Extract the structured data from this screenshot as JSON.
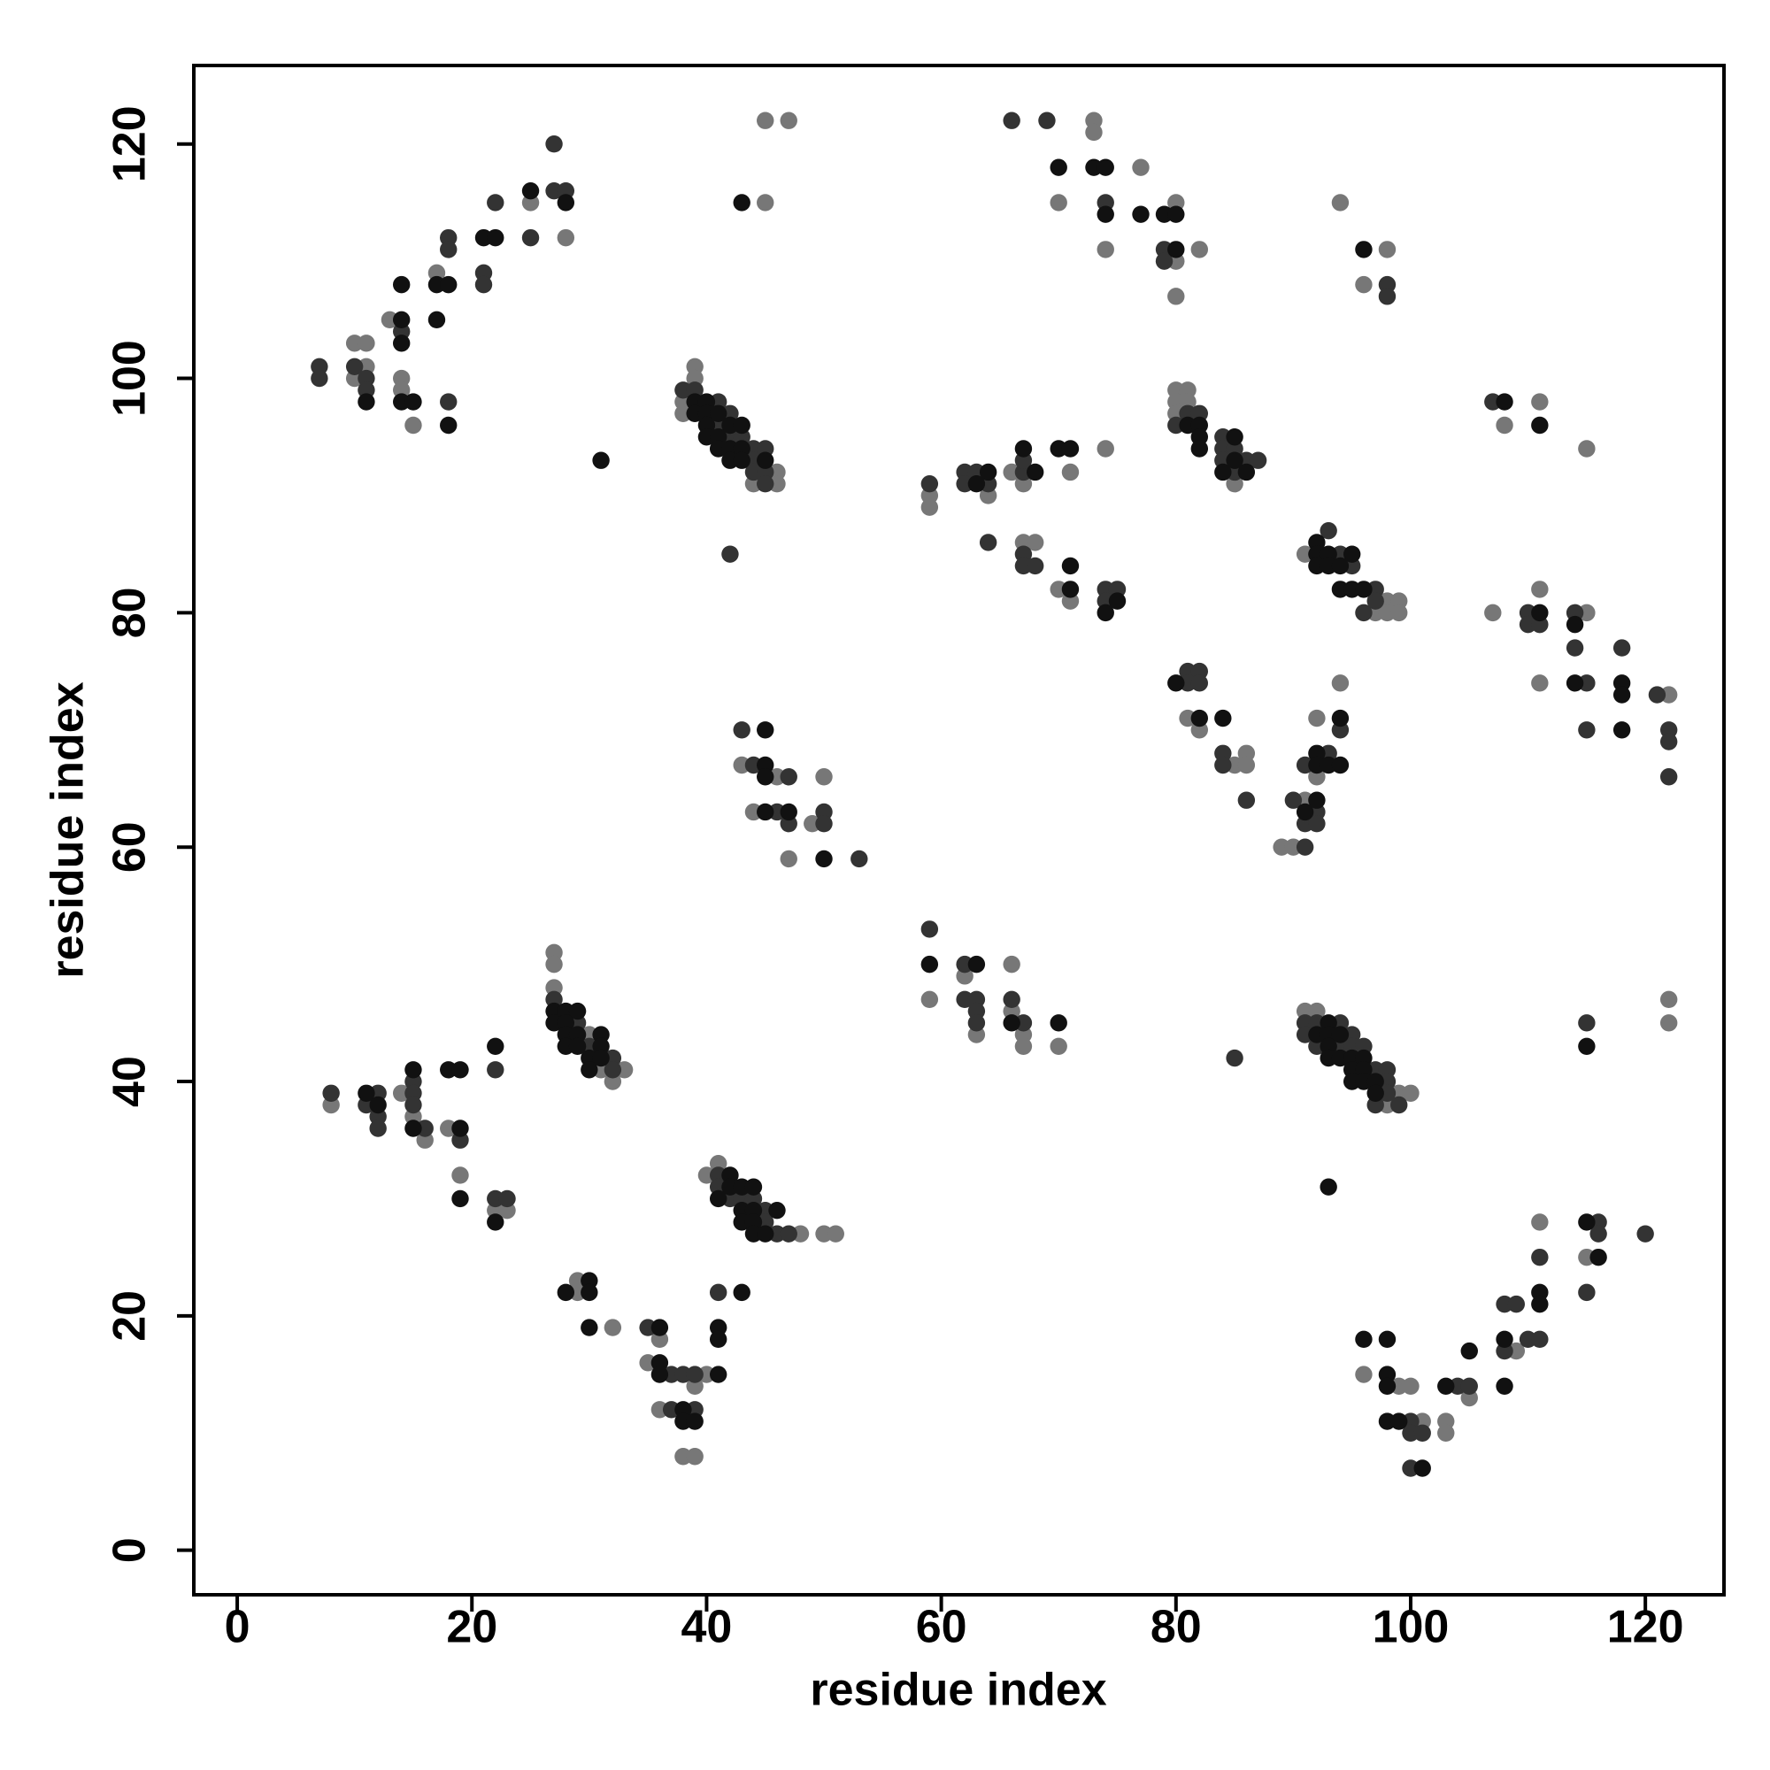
{
  "chart_data": {
    "type": "scatter",
    "x_label": "residue index",
    "y_label": "residue index",
    "xlim": [
      -3.7,
      126.7
    ],
    "ylim": [
      -3.8,
      126.7
    ],
    "xticks": [
      0,
      20,
      40,
      60,
      80,
      100,
      120
    ],
    "yticks": [
      0,
      20,
      40,
      60,
      80,
      100,
      120
    ],
    "grid": false,
    "series": [
      {
        "color": "#777777",
        "x": [
          10,
          11,
          11,
          10,
          13,
          14,
          14,
          15,
          17,
          25,
          28,
          45,
          45,
          47,
          39,
          39,
          38,
          38,
          46,
          44,
          46,
          73,
          73,
          77,
          70,
          80,
          74,
          82,
          80,
          80,
          94,
          98,
          96,
          59,
          59,
          64,
          66,
          67,
          71,
          74,
          67,
          68,
          70,
          71,
          80,
          81,
          80,
          81,
          80,
          85,
          91,
          98,
          99,
          97,
          98,
          99,
          111,
          108,
          115,
          107,
          111,
          115,
          111,
          122,
          81,
          82,
          85,
          86,
          86,
          89,
          90,
          91,
          92,
          92,
          94,
          43,
          46,
          50,
          44,
          49,
          47,
          66,
          59,
          62,
          63,
          66,
          67,
          67,
          70,
          91,
          92,
          99,
          100,
          98,
          122,
          122,
          27,
          27,
          27,
          30,
          31,
          33,
          32,
          8,
          14,
          15,
          16,
          18,
          19,
          22,
          23,
          40,
          41,
          48,
          50,
          51,
          29,
          29,
          32,
          35,
          36,
          40,
          39,
          36,
          38,
          39,
          96,
          99,
          100,
          101,
          103,
          103,
          105,
          109,
          111,
          115
        ],
        "values": [
          103,
          103,
          101,
          100,
          105,
          100,
          99,
          96,
          109,
          115,
          112,
          115,
          122,
          122,
          101,
          100,
          98,
          97,
          92,
          91,
          91,
          122,
          121,
          118,
          115,
          115,
          111,
          111,
          110,
          107,
          115,
          111,
          108,
          90,
          89,
          90,
          92,
          91,
          92,
          94,
          86,
          86,
          82,
          81,
          99,
          99,
          98,
          98,
          97,
          91,
          85,
          81,
          81,
          80,
          80,
          80,
          98,
          96,
          94,
          80,
          82,
          80,
          74,
          73,
          71,
          70,
          67,
          68,
          67,
          60,
          60,
          64,
          71,
          66,
          74,
          67,
          66,
          66,
          63,
          62,
          59,
          50,
          47,
          49,
          44,
          46,
          44,
          43,
          43,
          46,
          46,
          39,
          39,
          38,
          47,
          45,
          51,
          50,
          48,
          44,
          41,
          41,
          40,
          38,
          39,
          37,
          35,
          36,
          32,
          29,
          29,
          32,
          33,
          27,
          27,
          27,
          22,
          23,
          19,
          16,
          18,
          15,
          14,
          12,
          8,
          8,
          15,
          14,
          14,
          11,
          11,
          10,
          13,
          17,
          28,
          25
        ]
      },
      {
        "color": "#333333",
        "x": [
          7,
          7,
          10,
          11,
          11,
          14,
          18,
          18,
          18,
          21,
          21,
          22,
          25,
          27,
          27,
          28,
          38,
          39,
          41,
          42,
          41,
          42,
          43,
          44,
          45,
          44,
          44,
          45,
          45,
          42,
          66,
          69,
          74,
          79,
          79,
          98,
          98,
          59,
          62,
          63,
          62,
          64,
          67,
          67,
          64,
          67,
          67,
          68,
          74,
          75,
          74,
          81,
          82,
          80,
          84,
          84,
          85,
          84,
          86,
          87,
          85,
          93,
          94,
          95,
          97,
          96,
          97,
          107,
          110,
          110,
          111,
          114,
          114,
          115,
          115,
          118,
          121,
          122,
          122,
          122,
          81,
          82,
          81,
          82,
          84,
          84,
          86,
          91,
          90,
          92,
          91,
          92,
          91,
          93,
          94,
          43,
          44,
          47,
          46,
          47,
          50,
          50,
          53,
          59,
          62,
          62,
          63,
          63,
          63,
          66,
          67,
          91,
          92,
          94,
          91,
          95,
          92,
          94,
          95,
          96,
          97,
          98,
          98,
          98,
          97,
          99,
          85,
          115,
          27,
          29,
          30,
          32,
          32,
          8,
          12,
          11,
          12,
          12,
          15,
          15,
          15,
          16,
          19,
          22,
          22,
          23,
          41,
          41,
          42,
          43,
          44,
          45,
          45,
          46,
          47,
          35,
          37,
          38,
          39,
          37,
          39,
          41,
          100,
          100,
          101,
          100,
          104,
          105,
          108,
          109,
          108,
          110,
          111,
          111,
          116,
          116,
          115,
          120
        ],
        "values": [
          101,
          100,
          101,
          100,
          99,
          104,
          112,
          111,
          98,
          109,
          108,
          115,
          112,
          120,
          116,
          116,
          99,
          99,
          98,
          97,
          96,
          95,
          95,
          94,
          94,
          93,
          92,
          92,
          91,
          85,
          122,
          122,
          115,
          111,
          110,
          108,
          107,
          91,
          92,
          92,
          91,
          91,
          92,
          93,
          86,
          85,
          84,
          84,
          82,
          82,
          81,
          97,
          97,
          96,
          95,
          94,
          94,
          93,
          93,
          93,
          92,
          87,
          85,
          84,
          82,
          80,
          81,
          98,
          80,
          79,
          79,
          80,
          77,
          74,
          70,
          77,
          73,
          70,
          69,
          66,
          75,
          75,
          74,
          74,
          68,
          67,
          64,
          60,
          64,
          63,
          62,
          62,
          67,
          68,
          70,
          70,
          67,
          66,
          63,
          62,
          63,
          62,
          59,
          53,
          50,
          47,
          47,
          46,
          45,
          47,
          45,
          45,
          45,
          45,
          44,
          44,
          43,
          43,
          43,
          43,
          41,
          41,
          40,
          39,
          38,
          38,
          42,
          45,
          47,
          45,
          43,
          42,
          41,
          39,
          39,
          38,
          37,
          36,
          40,
          39,
          38,
          36,
          35,
          41,
          30,
          30,
          32,
          31,
          30,
          30,
          30,
          29,
          28,
          27,
          27,
          19,
          15,
          15,
          15,
          12,
          12,
          22,
          11,
          10,
          10,
          7,
          14,
          14,
          21,
          21,
          17,
          18,
          18,
          25,
          28,
          27,
          22,
          27
        ]
      },
      {
        "color": "#111111",
        "x": [
          11,
          14,
          14,
          14,
          14,
          15,
          17,
          18,
          17,
          18,
          21,
          22,
          25,
          28,
          43,
          31,
          39,
          40,
          39,
          40,
          41,
          40,
          42,
          43,
          40,
          41,
          41,
          42,
          43,
          42,
          43,
          45,
          70,
          73,
          74,
          74,
          77,
          79,
          80,
          80,
          96,
          64,
          63,
          68,
          67,
          70,
          71,
          71,
          71,
          75,
          74,
          81,
          82,
          82,
          82,
          85,
          85,
          84,
          86,
          92,
          92,
          93,
          95,
          92,
          93,
          94,
          94,
          95,
          96,
          108,
          111,
          111,
          114,
          114,
          118,
          118,
          118,
          80,
          82,
          84,
          91,
          92,
          92,
          92,
          93,
          94,
          94,
          45,
          45,
          45,
          45,
          47,
          50,
          59,
          63,
          66,
          70,
          93,
          92,
          93,
          94,
          93,
          93,
          94,
          95,
          96,
          95,
          96,
          95,
          96,
          97,
          97,
          93,
          115,
          27,
          27,
          28,
          29,
          28,
          28,
          29,
          31,
          28,
          29,
          31,
          30,
          31,
          30,
          11,
          12,
          15,
          15,
          18,
          19,
          19,
          19,
          22,
          22,
          42,
          42,
          43,
          44,
          41,
          43,
          44,
          46,
          43,
          44,
          44,
          45,
          28,
          30,
          30,
          30,
          36,
          36,
          36,
          41,
          38,
          38,
          39,
          41,
          41,
          43,
          96,
          98,
          98,
          98,
          98,
          99,
          101,
          103,
          105,
          108,
          108,
          111,
          111,
          115,
          116
        ],
        "values": [
          98,
          105,
          103,
          108,
          98,
          98,
          108,
          108,
          105,
          96,
          112,
          112,
          116,
          115,
          115,
          93,
          98,
          98,
          97,
          97,
          97,
          96,
          96,
          96,
          95,
          95,
          94,
          94,
          94,
          93,
          93,
          93,
          118,
          118,
          118,
          114,
          114,
          114,
          114,
          111,
          111,
          92,
          91,
          92,
          94,
          94,
          94,
          82,
          84,
          81,
          80,
          96,
          96,
          95,
          94,
          95,
          93,
          92,
          92,
          86,
          85,
          85,
          85,
          84,
          84,
          84,
          82,
          82,
          82,
          98,
          96,
          80,
          79,
          74,
          74,
          73,
          70,
          74,
          71,
          71,
          63,
          64,
          68,
          67,
          67,
          67,
          71,
          70,
          67,
          66,
          63,
          63,
          59,
          50,
          50,
          45,
          45,
          45,
          44,
          44,
          44,
          43,
          42,
          42,
          42,
          42,
          41,
          41,
          40,
          40,
          40,
          39,
          31,
          43,
          46,
          45,
          46,
          46,
          45,
          44,
          44,
          44,
          43,
          43,
          43,
          42,
          42,
          41,
          39,
          38,
          41,
          36,
          41,
          41,
          36,
          30,
          43,
          28,
          32,
          31,
          31,
          31,
          30,
          29,
          29,
          29,
          28,
          28,
          27,
          27,
          22,
          23,
          22,
          19,
          19,
          16,
          15,
          15,
          12,
          11,
          11,
          19,
          18,
          22,
          18,
          18,
          15,
          14,
          11,
          11,
          7,
          14,
          17,
          18,
          14,
          22,
          21,
          28,
          25
        ]
      }
    ]
  }
}
